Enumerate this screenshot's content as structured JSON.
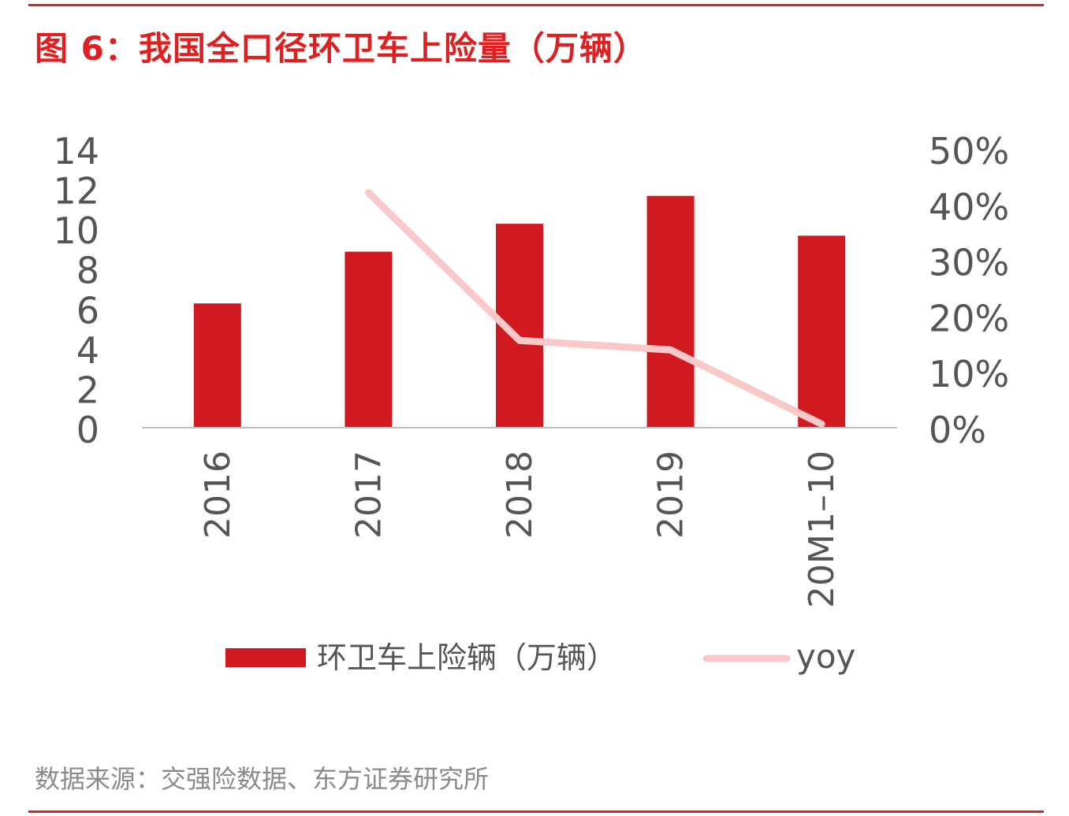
{
  "header": {
    "title": "图 6：我国全口径环卫车上险量（万辆）"
  },
  "footer": {
    "source": "数据来源：交强险数据、东方证券研究所"
  },
  "colors": {
    "accent": "#e02020",
    "bar": "#d11a1f",
    "line": "#f9c8c8",
    "axis": "#bdbdbd",
    "text": "#555555"
  },
  "chart_data": {
    "type": "bar",
    "title": "我国全口径环卫车上险量（万辆）",
    "categories": [
      "2016",
      "2017",
      "2018",
      "2019",
      "20M1–10"
    ],
    "series": [
      {
        "name": "环卫车上险辆（万辆）",
        "type": "bar",
        "axis": "left",
        "values": [
          6.2,
          8.8,
          10.2,
          11.6,
          9.6
        ]
      },
      {
        "name": "yoy",
        "type": "line",
        "axis": "right",
        "values": [
          null,
          0.42,
          0.155,
          0.138,
          0.005
        ]
      }
    ],
    "y_left": {
      "min": 0,
      "max": 14,
      "ticks": [
        "0",
        "2",
        "4",
        "6",
        "8",
        "10",
        "12",
        "14"
      ]
    },
    "y_right": {
      "min": 0,
      "max": 0.5,
      "ticks": [
        "0%",
        "10%",
        "20%",
        "30%",
        "40%",
        "50%"
      ]
    },
    "xlabel": "",
    "ylabel": "",
    "grid": false,
    "legend": "bottom"
  }
}
